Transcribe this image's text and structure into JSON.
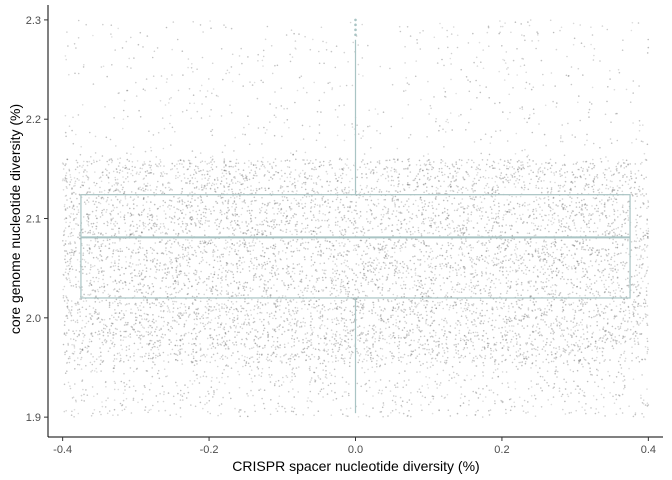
{
  "chart_data": {
    "type": "boxplot-with-jitter",
    "xlabel": "CRISPR spacer nucleotide diversity (%)",
    "ylabel": "core genome nucleotide diversity (%)",
    "xlim": [
      -0.42,
      0.42
    ],
    "ylim": [
      1.88,
      2.315
    ],
    "x_ticks": [
      -0.4,
      -0.2,
      0.0,
      0.2,
      0.4
    ],
    "x_tick_labels": [
      "-0.4",
      "-0.2",
      "0.0",
      "0.2",
      "0.4"
    ],
    "y_ticks": [
      1.9,
      2.0,
      2.1,
      2.2,
      2.3
    ],
    "y_tick_labels": [
      "1.9",
      "2.0",
      "2.1",
      "2.2",
      "2.3"
    ],
    "grid": false,
    "box": {
      "x_center": 0.0,
      "width": 0.75,
      "q1": 2.02,
      "median": 2.081,
      "q3": 2.124,
      "whisker_low": 1.904,
      "whisker_high": 2.28,
      "outliers": [
        2.285,
        2.29,
        2.295,
        2.3
      ],
      "color": "#a9c4c4"
    },
    "points": {
      "count": 9000,
      "x_range": [
        -0.4,
        0.4
      ],
      "y_distribution": "mostly within 1.95–2.16, sparse tails to 1.90 and 2.30",
      "color": "#555555"
    }
  }
}
